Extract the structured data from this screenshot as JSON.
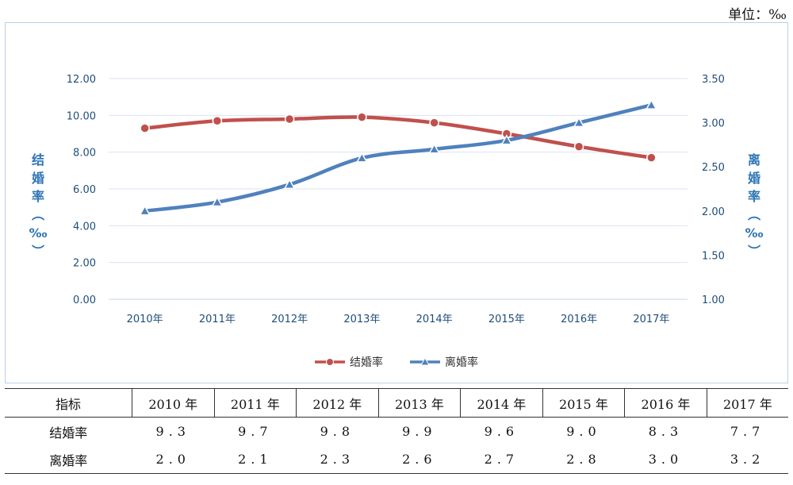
{
  "unit_label": "单位：‰",
  "chart_data": {
    "type": "line",
    "categories": [
      "2010年",
      "2011年",
      "2012年",
      "2013年",
      "2014年",
      "2015年",
      "2016年",
      "2017年"
    ],
    "series": [
      {
        "name": "结婚率",
        "axis": "left",
        "color": "#c0504d",
        "marker": "circle",
        "values": [
          9.3,
          9.7,
          9.8,
          9.9,
          9.6,
          9.0,
          8.3,
          7.7
        ]
      },
      {
        "name": "离婚率",
        "axis": "right",
        "color": "#4f81bd",
        "marker": "triangle",
        "values": [
          2.0,
          2.1,
          2.3,
          2.6,
          2.7,
          2.8,
          3.0,
          3.2
        ]
      }
    ],
    "y_left": {
      "label": "结婚率（‰）",
      "ylim": [
        0,
        12
      ],
      "ticks": [
        "0.00",
        "2.00",
        "4.00",
        "6.00",
        "8.00",
        "10.00",
        "12.00"
      ]
    },
    "y_right": {
      "label": "离婚率（‰）",
      "ylim": [
        1,
        3.5
      ],
      "ticks": [
        "1.00",
        "1.50",
        "2.00",
        "2.50",
        "3.00",
        "3.50"
      ]
    },
    "grid": true,
    "legend": "bottom"
  },
  "table": {
    "headers": [
      "指标",
      "2010 年",
      "2011 年",
      "2012 年",
      "2013 年",
      "2014 年",
      "2015 年",
      "2016 年",
      "2017 年"
    ],
    "rows": [
      [
        "结婚率",
        "9.3",
        "9.7",
        "9.8",
        "9.9",
        "9.6",
        "9.0",
        "8.3",
        "7.7"
      ],
      [
        "离婚率",
        "2.0",
        "2.1",
        "2.3",
        "2.6",
        "2.7",
        "2.8",
        "3.0",
        "3.2"
      ]
    ]
  }
}
